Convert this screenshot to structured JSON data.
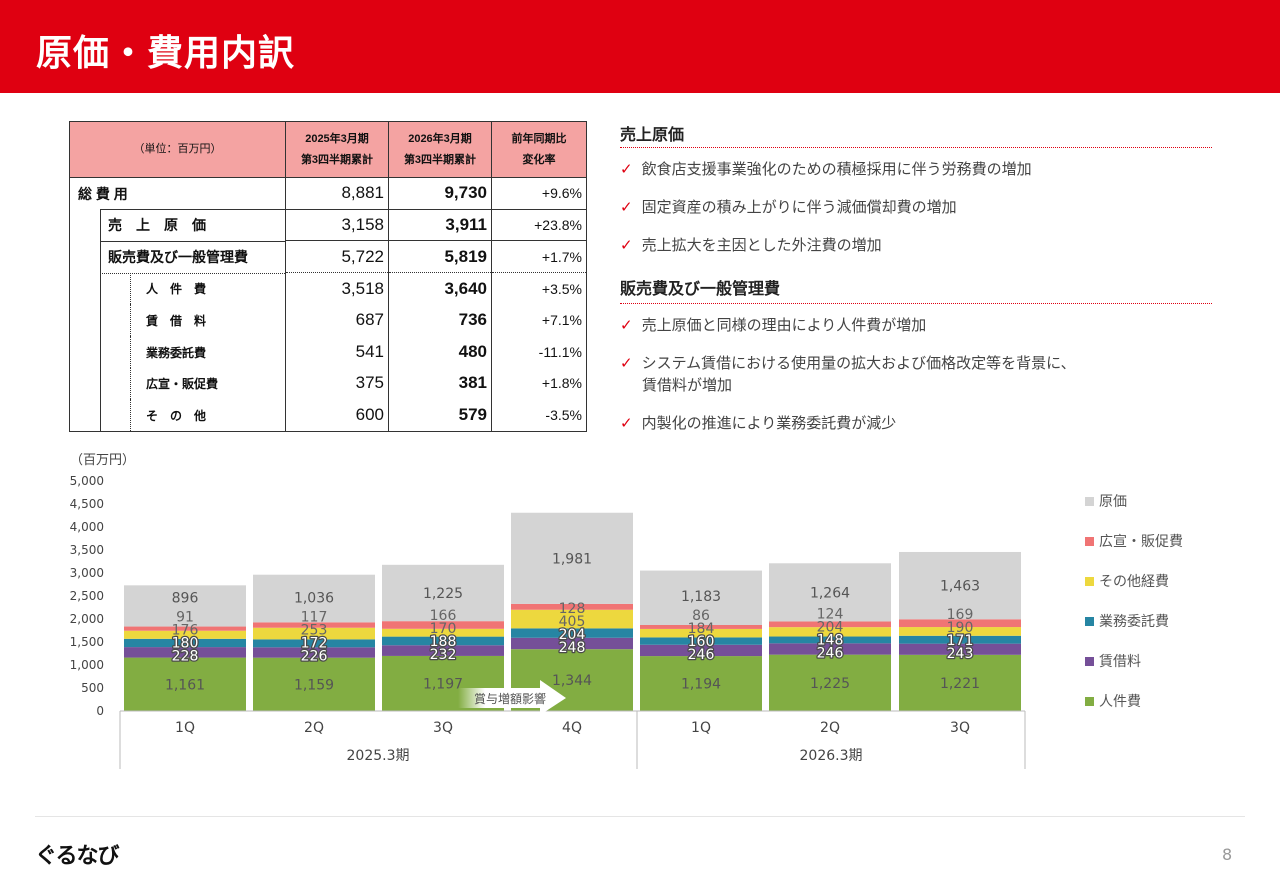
{
  "title": "原価・費用内訳",
  "table": {
    "header": [
      "（単位：百万円）",
      "2025年3月期\n第3四半期累計",
      "2026年3月期\n第3四半期累計",
      "前年同期比\n変化率"
    ],
    "rows": [
      {
        "label": "総 費 用",
        "v1": "8,881",
        "v2": "9,730",
        "rate": "+9.6%"
      },
      {
        "label": "売　上　原　価",
        "v1": "3,158",
        "v2": "3,911",
        "rate": "+23.8%"
      },
      {
        "label": "販売費及び一般管理費",
        "v1": "5,722",
        "v2": "5,819",
        "rate": "+1.7%"
      },
      {
        "label": "人　件　費",
        "v1": "3,518",
        "v2": "3,640",
        "rate": "+3.5%"
      },
      {
        "label": "賃　借　料",
        "v1": "687",
        "v2": "736",
        "rate": "+7.1%"
      },
      {
        "label": "業務委託費",
        "v1": "541",
        "v2": "480",
        "rate": "-11.1%"
      },
      {
        "label": "広宣・販促費",
        "v1": "375",
        "v2": "381",
        "rate": "+1.8%"
      },
      {
        "label": "そ　の　他",
        "v1": "600",
        "v2": "579",
        "rate": "-3.5%"
      }
    ]
  },
  "notes": {
    "cogs_heading": "売上原価",
    "cogs_items": [
      "飲食店支援事業強化のための積極採用に伴う労務費の増加",
      "固定資産の積み上がりに伴う減価償却費の増加",
      "売上拡大を主因とした外注費の増加"
    ],
    "sga_heading": "販売費及び一般管理費",
    "sga_items": [
      "売上原価と同様の理由により人件費が増加",
      "システム賃借における使用量の拡大および価格改定等を背景に、",
      "賃借料が増加",
      "内製化の推進により業務委託費が減少"
    ]
  },
  "chart_data": {
    "type": "bar",
    "stacked": true,
    "ylabel": "（百万円）",
    "ylim": [
      0,
      5000
    ],
    "yticks": [
      "0",
      "500",
      "1,000",
      "1,500",
      "2,000",
      "2,500",
      "3,000",
      "3,500",
      "4,000",
      "4,500",
      "5,000"
    ],
    "categories": [
      "1Q",
      "2Q",
      "3Q",
      "4Q",
      "1Q",
      "2Q",
      "3Q"
    ],
    "groups": [
      {
        "label": "2025.3期",
        "count": 4
      },
      {
        "label": "2026.3期",
        "count": 3
      }
    ],
    "legend_placement": "right",
    "series": [
      {
        "name": "人件費",
        "color": "#82ad42",
        "label_color": "#555555",
        "values": [
          1161,
          1159,
          1197,
          1344,
          1194,
          1225,
          1221
        ]
      },
      {
        "name": "賃借料",
        "color": "#754f98",
        "label_color": "#ffffff",
        "values": [
          228,
          226,
          232,
          248,
          246,
          246,
          243
        ]
      },
      {
        "name": "業務委託費",
        "color": "#2685a3",
        "label_color": "#ffffff",
        "values": [
          180,
          172,
          188,
          204,
          160,
          148,
          171
        ]
      },
      {
        "name": "その他経費",
        "color": "#edd83e",
        "label_color": "#666666",
        "values": [
          176,
          253,
          170,
          405,
          184,
          204,
          190
        ]
      },
      {
        "name": "広宣・販促費",
        "color": "#f07474",
        "label_color": "#666666",
        "values": [
          91,
          117,
          166,
          128,
          86,
          124,
          169
        ]
      },
      {
        "name": "原価",
        "color": "#d4d4d4",
        "label_color": "#555555",
        "values": [
          896,
          1036,
          1225,
          1981,
          1183,
          1264,
          1463
        ]
      }
    ],
    "annotation": "賞与増額影響"
  },
  "footer": {
    "logo": "ぐるなび",
    "page": "8"
  }
}
